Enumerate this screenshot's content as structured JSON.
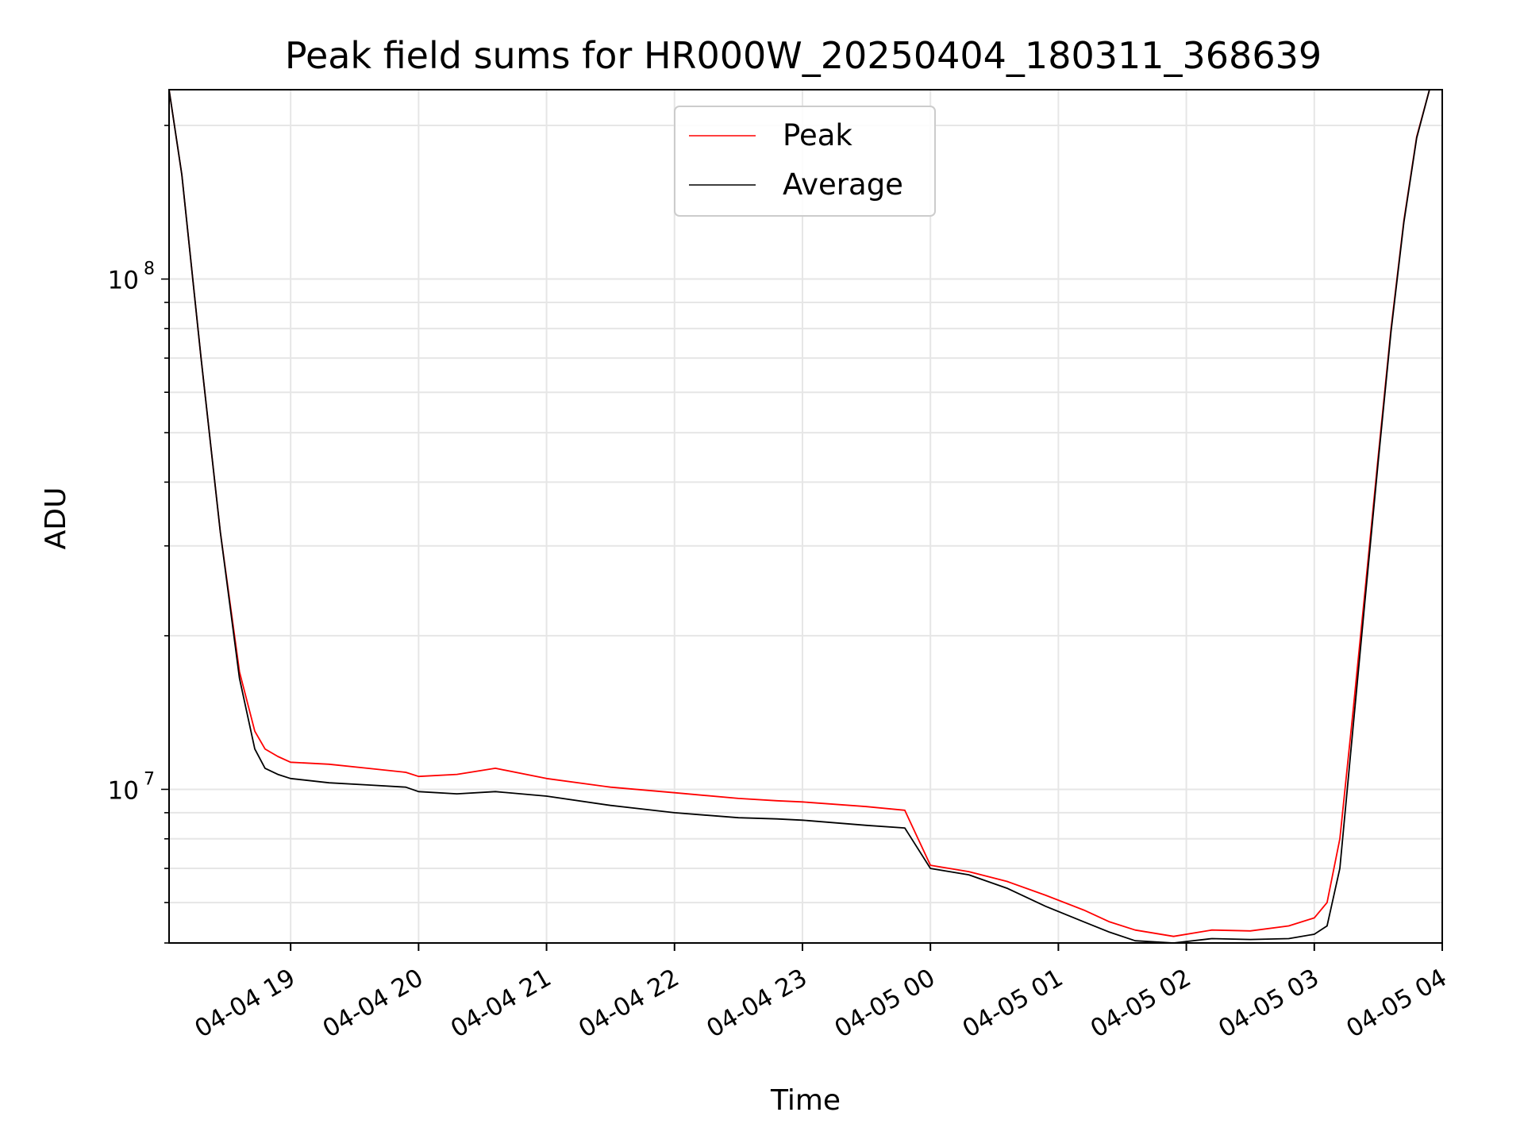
{
  "chart_data": {
    "type": "line",
    "title": "Peak field sums for HR000W_20250404_180311_368639",
    "xlabel": "Time",
    "ylabel": "ADU",
    "yscale": "log",
    "xlim": [
      18.05,
      28.0
    ],
    "ylim": [
      5000000,
      235000000
    ],
    "grid": true,
    "legend_position": "top-center",
    "x_ticks": [
      {
        "x": 19,
        "label": "04-04 19"
      },
      {
        "x": 20,
        "label": "04-04 20"
      },
      {
        "x": 21,
        "label": "04-04 21"
      },
      {
        "x": 22,
        "label": "04-04 22"
      },
      {
        "x": 23,
        "label": "04-04 23"
      },
      {
        "x": 24,
        "label": "04-05 00"
      },
      {
        "x": 25,
        "label": "04-05 01"
      },
      {
        "x": 26,
        "label": "04-05 02"
      },
      {
        "x": 27,
        "label": "04-05 03"
      },
      {
        "x": 28,
        "label": "04-05 04"
      }
    ],
    "y_major_ticks": [
      {
        "y": 10000000,
        "base": "10",
        "exp": "7"
      },
      {
        "y": 100000000,
        "base": "10",
        "exp": "8"
      }
    ],
    "series": [
      {
        "name": "Peak",
        "color": "#ff0000",
        "x": [
          18.05,
          18.15,
          18.3,
          18.45,
          18.6,
          18.72,
          18.8,
          18.9,
          19.0,
          19.3,
          19.6,
          19.9,
          20.0,
          20.3,
          20.6,
          21.0,
          21.5,
          22.0,
          22.5,
          22.8,
          23.0,
          23.5,
          23.8,
          24.0,
          24.3,
          24.6,
          24.9,
          25.2,
          25.4,
          25.6,
          25.9,
          26.2,
          26.5,
          26.8,
          27.0,
          27.1,
          27.2,
          27.3,
          27.4,
          27.5,
          27.6,
          27.7,
          27.8,
          27.9,
          27.96
        ],
        "y": [
          235000000,
          160000000,
          70000000,
          32000000,
          17000000,
          13000000,
          12000000,
          11600000,
          11300000,
          11200000,
          11000000,
          10800000,
          10600000,
          10700000,
          11000000,
          10500000,
          10100000,
          9850000,
          9600000,
          9500000,
          9450000,
          9250000,
          9100000,
          7100000,
          6900000,
          6600000,
          6200000,
          5800000,
          5500000,
          5300000,
          5150000,
          5300000,
          5280000,
          5400000,
          5600000,
          6000000,
          8000000,
          14000000,
          25000000,
          45000000,
          80000000,
          130000000,
          190000000,
          235000000,
          235000000
        ]
      },
      {
        "name": "Average",
        "color": "#000000",
        "x": [
          18.05,
          18.15,
          18.3,
          18.45,
          18.6,
          18.72,
          18.8,
          18.9,
          19.0,
          19.3,
          19.6,
          19.9,
          20.0,
          20.3,
          20.6,
          21.0,
          21.5,
          22.0,
          22.5,
          22.8,
          23.0,
          23.5,
          23.8,
          24.0,
          24.3,
          24.6,
          24.9,
          25.2,
          25.4,
          25.6,
          25.9,
          26.2,
          26.5,
          26.8,
          27.0,
          27.1,
          27.2,
          27.3,
          27.4,
          27.5,
          27.6,
          27.7,
          27.8,
          27.9,
          27.96
        ],
        "y": [
          235000000,
          160000000,
          70000000,
          32000000,
          16500000,
          12000000,
          11000000,
          10700000,
          10500000,
          10300000,
          10200000,
          10100000,
          9900000,
          9800000,
          9900000,
          9700000,
          9300000,
          9000000,
          8800000,
          8750000,
          8700000,
          8500000,
          8400000,
          7000000,
          6800000,
          6400000,
          5900000,
          5500000,
          5250000,
          5050000,
          5000000,
          5100000,
          5080000,
          5100000,
          5200000,
          5400000,
          7000000,
          13000000,
          24000000,
          44000000,
          79000000,
          129000000,
          189000000,
          235000000,
          235000000
        ]
      }
    ]
  }
}
